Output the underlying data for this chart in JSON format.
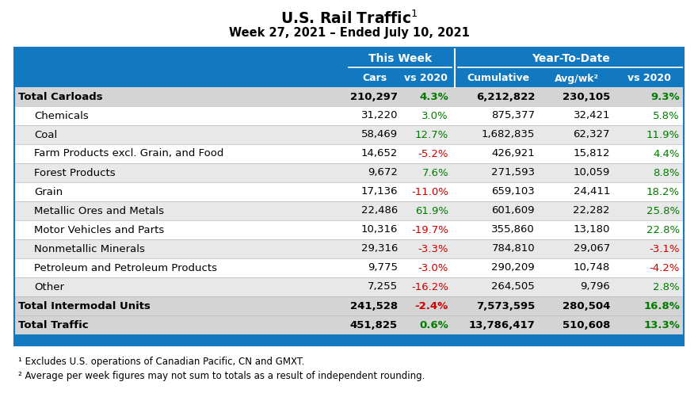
{
  "title": "U.S. Rail Traffic",
  "subtitle": "Week 27, 2021 – Ended July 10, 2021",
  "header_bg": "#1278bf",
  "row_alt1": "#ffffff",
  "row_alt2": "#e8e8e8",
  "total_row_bg": "#d4d4d4",
  "green": "#007b00",
  "red": "#cc0000",
  "black": "#000000",
  "footnote1": "¹ Excludes U.S. operations of Canadian Pacific, CN and GMXT.",
  "footnote2": "² Average per week figures may not sum to totals as a result of independent rounding.",
  "rows": [
    {
      "label": "Total Carloads",
      "bold": true,
      "indent": false,
      "cars": "210,297",
      "vs2020": "4.3%",
      "vs2020_color": "green",
      "cumulative": "6,212,822",
      "avgwk": "230,105",
      "ytd_vs2020": "9.3%",
      "ytd_vs2020_color": "green"
    },
    {
      "label": "Chemicals",
      "bold": false,
      "indent": true,
      "cars": "31,220",
      "vs2020": "3.0%",
      "vs2020_color": "green",
      "cumulative": "875,377",
      "avgwk": "32,421",
      "ytd_vs2020": "5.8%",
      "ytd_vs2020_color": "green"
    },
    {
      "label": "Coal",
      "bold": false,
      "indent": true,
      "cars": "58,469",
      "vs2020": "12.7%",
      "vs2020_color": "green",
      "cumulative": "1,682,835",
      "avgwk": "62,327",
      "ytd_vs2020": "11.9%",
      "ytd_vs2020_color": "green"
    },
    {
      "label": "Farm Products excl. Grain, and Food",
      "bold": false,
      "indent": true,
      "cars": "14,652",
      "vs2020": "-5.2%",
      "vs2020_color": "red",
      "cumulative": "426,921",
      "avgwk": "15,812",
      "ytd_vs2020": "4.4%",
      "ytd_vs2020_color": "green"
    },
    {
      "label": "Forest Products",
      "bold": false,
      "indent": true,
      "cars": "9,672",
      "vs2020": "7.6%",
      "vs2020_color": "green",
      "cumulative": "271,593",
      "avgwk": "10,059",
      "ytd_vs2020": "8.8%",
      "ytd_vs2020_color": "green"
    },
    {
      "label": "Grain",
      "bold": false,
      "indent": true,
      "cars": "17,136",
      "vs2020": "-11.0%",
      "vs2020_color": "red",
      "cumulative": "659,103",
      "avgwk": "24,411",
      "ytd_vs2020": "18.2%",
      "ytd_vs2020_color": "green"
    },
    {
      "label": "Metallic Ores and Metals",
      "bold": false,
      "indent": true,
      "cars": "22,486",
      "vs2020": "61.9%",
      "vs2020_color": "green",
      "cumulative": "601,609",
      "avgwk": "22,282",
      "ytd_vs2020": "25.8%",
      "ytd_vs2020_color": "green"
    },
    {
      "label": "Motor Vehicles and Parts",
      "bold": false,
      "indent": true,
      "cars": "10,316",
      "vs2020": "-19.7%",
      "vs2020_color": "red",
      "cumulative": "355,860",
      "avgwk": "13,180",
      "ytd_vs2020": "22.8%",
      "ytd_vs2020_color": "green"
    },
    {
      "label": "Nonmetallic Minerals",
      "bold": false,
      "indent": true,
      "cars": "29,316",
      "vs2020": "-3.3%",
      "vs2020_color": "red",
      "cumulative": "784,810",
      "avgwk": "29,067",
      "ytd_vs2020": "-3.1%",
      "ytd_vs2020_color": "red"
    },
    {
      "label": "Petroleum and Petroleum Products",
      "bold": false,
      "indent": true,
      "cars": "9,775",
      "vs2020": "-3.0%",
      "vs2020_color": "red",
      "cumulative": "290,209",
      "avgwk": "10,748",
      "ytd_vs2020": "-4.2%",
      "ytd_vs2020_color": "red"
    },
    {
      "label": "Other",
      "bold": false,
      "indent": true,
      "cars": "7,255",
      "vs2020": "-16.2%",
      "vs2020_color": "red",
      "cumulative": "264,505",
      "avgwk": "9,796",
      "ytd_vs2020": "2.8%",
      "ytd_vs2020_color": "green"
    },
    {
      "label": "Total Intermodal Units",
      "bold": true,
      "indent": false,
      "cars": "241,528",
      "vs2020": "-2.4%",
      "vs2020_color": "red",
      "cumulative": "7,573,595",
      "avgwk": "280,504",
      "ytd_vs2020": "16.8%",
      "ytd_vs2020_color": "green"
    },
    {
      "label": "Total Traffic",
      "bold": true,
      "indent": false,
      "cars": "451,825",
      "vs2020": "0.6%",
      "vs2020_color": "green",
      "cumulative": "13,786,417",
      "avgwk": "510,608",
      "ytd_vs2020": "13.3%",
      "ytd_vs2020_color": "green"
    }
  ]
}
